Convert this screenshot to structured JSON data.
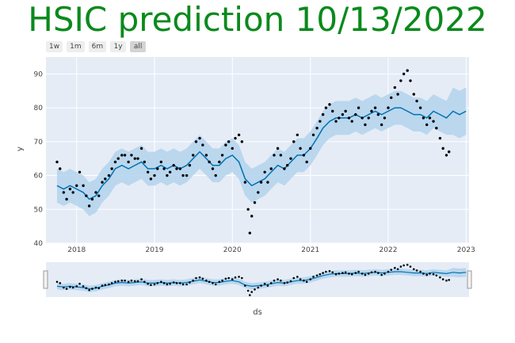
{
  "title": "HSIC prediction 10/13/2022",
  "range_buttons": [
    "1w",
    "1m",
    "6m",
    "1y",
    "all"
  ],
  "range_active": "all",
  "colors": {
    "title": "#0a8a1c",
    "plot_bg": "#e5ecf6",
    "grid": "#ffffff",
    "forecast_line": "#0072b2",
    "uncertainty_band": "#b3d3ec",
    "actual_points": "#000000"
  },
  "chart_data": {
    "type": "scatter",
    "xlabel": "ds",
    "ylabel": "y",
    "xlim": [
      "2017-08-10",
      "2023-01-15"
    ],
    "ylim": [
      40,
      95
    ],
    "x_ticks": [
      "2018",
      "2019",
      "2020",
      "2021",
      "2022",
      "2023"
    ],
    "y_ticks": [
      40,
      50,
      60,
      70,
      80,
      90
    ],
    "grid": true,
    "legend": "none",
    "series": [
      {
        "role": "actual",
        "mode": "markers",
        "points": [
          [
            "2017-10-01",
            64
          ],
          [
            "2017-10-15",
            62
          ],
          [
            "2017-11-01",
            55
          ],
          [
            "2017-11-15",
            53
          ],
          [
            "2017-12-01",
            56
          ],
          [
            "2017-12-15",
            55
          ],
          [
            "2018-01-01",
            57
          ],
          [
            "2018-01-15",
            61
          ],
          [
            "2018-02-01",
            57
          ],
          [
            "2018-02-15",
            54
          ],
          [
            "2018-03-01",
            51
          ],
          [
            "2018-03-15",
            53
          ],
          [
            "2018-04-01",
            55
          ],
          [
            "2018-04-15",
            54
          ],
          [
            "2018-05-01",
            58
          ],
          [
            "2018-05-15",
            59
          ],
          [
            "2018-06-01",
            60
          ],
          [
            "2018-06-15",
            62
          ],
          [
            "2018-07-01",
            64
          ],
          [
            "2018-07-15",
            65
          ],
          [
            "2018-08-01",
            66
          ],
          [
            "2018-08-15",
            66
          ],
          [
            "2018-09-01",
            64
          ],
          [
            "2018-09-15",
            66
          ],
          [
            "2018-10-01",
            65
          ],
          [
            "2018-10-15",
            65
          ],
          [
            "2018-11-01",
            68
          ],
          [
            "2018-11-15",
            64
          ],
          [
            "2018-12-01",
            61
          ],
          [
            "2018-12-15",
            59
          ],
          [
            "2019-01-01",
            60
          ],
          [
            "2019-01-15",
            62
          ],
          [
            "2019-02-01",
            64
          ],
          [
            "2019-02-15",
            62
          ],
          [
            "2019-03-01",
            60
          ],
          [
            "2019-03-15",
            61
          ],
          [
            "2019-04-01",
            63
          ],
          [
            "2019-04-15",
            62
          ],
          [
            "2019-05-01",
            62
          ],
          [
            "2019-05-15",
            60
          ],
          [
            "2019-06-01",
            60
          ],
          [
            "2019-06-15",
            63
          ],
          [
            "2019-07-01",
            66
          ],
          [
            "2019-07-15",
            70
          ],
          [
            "2019-08-01",
            71
          ],
          [
            "2019-08-15",
            69
          ],
          [
            "2019-09-01",
            66
          ],
          [
            "2019-09-15",
            64
          ],
          [
            "2019-10-01",
            62
          ],
          [
            "2019-10-15",
            60
          ],
          [
            "2019-11-01",
            64
          ],
          [
            "2019-11-15",
            66
          ],
          [
            "2019-12-01",
            69
          ],
          [
            "2019-12-15",
            70
          ],
          [
            "2020-01-01",
            68
          ],
          [
            "2020-01-15",
            71
          ],
          [
            "2020-02-01",
            72
          ],
          [
            "2020-02-15",
            70
          ],
          [
            "2020-03-01",
            58
          ],
          [
            "2020-03-15",
            50
          ],
          [
            "2020-03-23",
            43
          ],
          [
            "2020-04-01",
            48
          ],
          [
            "2020-04-15",
            52
          ],
          [
            "2020-05-01",
            55
          ],
          [
            "2020-05-15",
            58
          ],
          [
            "2020-06-01",
            61
          ],
          [
            "2020-06-15",
            58
          ],
          [
            "2020-07-01",
            62
          ],
          [
            "2020-07-15",
            66
          ],
          [
            "2020-08-01",
            68
          ],
          [
            "2020-08-15",
            66
          ],
          [
            "2020-09-01",
            62
          ],
          [
            "2020-09-15",
            63
          ],
          [
            "2020-10-01",
            65
          ],
          [
            "2020-10-15",
            70
          ],
          [
            "2020-11-01",
            72
          ],
          [
            "2020-11-15",
            68
          ],
          [
            "2020-12-01",
            66
          ],
          [
            "2020-12-15",
            64
          ],
          [
            "2021-01-01",
            68
          ],
          [
            "2021-01-15",
            72
          ],
          [
            "2021-02-01",
            74
          ],
          [
            "2021-02-15",
            76
          ],
          [
            "2021-03-01",
            78
          ],
          [
            "2021-03-15",
            80
          ],
          [
            "2021-04-01",
            81
          ],
          [
            "2021-04-15",
            79
          ],
          [
            "2021-05-01",
            76
          ],
          [
            "2021-05-15",
            77
          ],
          [
            "2021-06-01",
            78
          ],
          [
            "2021-06-15",
            79
          ],
          [
            "2021-07-01",
            77
          ],
          [
            "2021-07-15",
            76
          ],
          [
            "2021-08-01",
            78
          ],
          [
            "2021-08-15",
            80
          ],
          [
            "2021-09-01",
            77
          ],
          [
            "2021-09-15",
            75
          ],
          [
            "2021-10-01",
            77
          ],
          [
            "2021-10-15",
            79
          ],
          [
            "2021-11-01",
            80
          ],
          [
            "2021-11-15",
            78
          ],
          [
            "2021-12-01",
            75
          ],
          [
            "2021-12-15",
            77
          ],
          [
            "2022-01-01",
            80
          ],
          [
            "2022-01-15",
            83
          ],
          [
            "2022-02-01",
            86
          ],
          [
            "2022-02-15",
            84
          ],
          [
            "2022-03-01",
            88
          ],
          [
            "2022-03-15",
            90
          ],
          [
            "2022-04-01",
            91
          ],
          [
            "2022-04-15",
            88
          ],
          [
            "2022-05-01",
            84
          ],
          [
            "2022-05-15",
            82
          ],
          [
            "2022-06-01",
            80
          ],
          [
            "2022-06-15",
            77
          ],
          [
            "2022-07-01",
            75
          ],
          [
            "2022-07-15",
            77
          ],
          [
            "2022-08-01",
            76
          ],
          [
            "2022-08-15",
            74
          ],
          [
            "2022-09-01",
            71
          ],
          [
            "2022-09-15",
            68
          ],
          [
            "2022-10-01",
            66
          ],
          [
            "2022-10-13",
            67
          ]
        ]
      },
      {
        "role": "forecast",
        "mode": "line",
        "points": [
          [
            "2017-10-01",
            57
          ],
          [
            "2017-11-01",
            56
          ],
          [
            "2017-12-01",
            57
          ],
          [
            "2018-01-01",
            56
          ],
          [
            "2018-02-01",
            55
          ],
          [
            "2018-03-01",
            53
          ],
          [
            "2018-04-01",
            54
          ],
          [
            "2018-05-01",
            57
          ],
          [
            "2018-06-01",
            59
          ],
          [
            "2018-07-01",
            62
          ],
          [
            "2018-08-01",
            63
          ],
          [
            "2018-09-01",
            62
          ],
          [
            "2018-10-01",
            63
          ],
          [
            "2018-11-01",
            64
          ],
          [
            "2018-12-01",
            62
          ],
          [
            "2019-01-01",
            62
          ],
          [
            "2019-02-01",
            63
          ],
          [
            "2019-03-01",
            62
          ],
          [
            "2019-04-01",
            63
          ],
          [
            "2019-05-01",
            62
          ],
          [
            "2019-06-01",
            63
          ],
          [
            "2019-07-01",
            65
          ],
          [
            "2019-08-01",
            67
          ],
          [
            "2019-09-01",
            65
          ],
          [
            "2019-10-01",
            63
          ],
          [
            "2019-11-01",
            63
          ],
          [
            "2019-12-01",
            65
          ],
          [
            "2020-01-01",
            66
          ],
          [
            "2020-02-01",
            64
          ],
          [
            "2020-03-01",
            59
          ],
          [
            "2020-04-01",
            57
          ],
          [
            "2020-05-01",
            58
          ],
          [
            "2020-06-01",
            59
          ],
          [
            "2020-07-01",
            61
          ],
          [
            "2020-08-01",
            63
          ],
          [
            "2020-09-01",
            62
          ],
          [
            "2020-10-01",
            64
          ],
          [
            "2020-11-01",
            66
          ],
          [
            "2020-12-01",
            66
          ],
          [
            "2021-01-01",
            68
          ],
          [
            "2021-02-01",
            71
          ],
          [
            "2021-03-01",
            74
          ],
          [
            "2021-04-01",
            76
          ],
          [
            "2021-05-01",
            77
          ],
          [
            "2021-06-01",
            77
          ],
          [
            "2021-07-01",
            77
          ],
          [
            "2021-08-01",
            78
          ],
          [
            "2021-09-01",
            77
          ],
          [
            "2021-10-01",
            78
          ],
          [
            "2021-11-01",
            79
          ],
          [
            "2021-12-01",
            78
          ],
          [
            "2022-01-01",
            79
          ],
          [
            "2022-02-01",
            80
          ],
          [
            "2022-03-01",
            80
          ],
          [
            "2022-04-01",
            79
          ],
          [
            "2022-05-01",
            78
          ],
          [
            "2022-06-01",
            78
          ],
          [
            "2022-07-01",
            77
          ],
          [
            "2022-08-01",
            79
          ],
          [
            "2022-09-01",
            78
          ],
          [
            "2022-10-01",
            77
          ],
          [
            "2022-11-01",
            79
          ],
          [
            "2022-12-01",
            78
          ],
          [
            "2023-01-01",
            79
          ]
        ]
      }
    ],
    "uncertainty_halfwidth": 5,
    "uncertainty_halfwidth_future": 7,
    "forecast_start": "2022-10-13"
  }
}
